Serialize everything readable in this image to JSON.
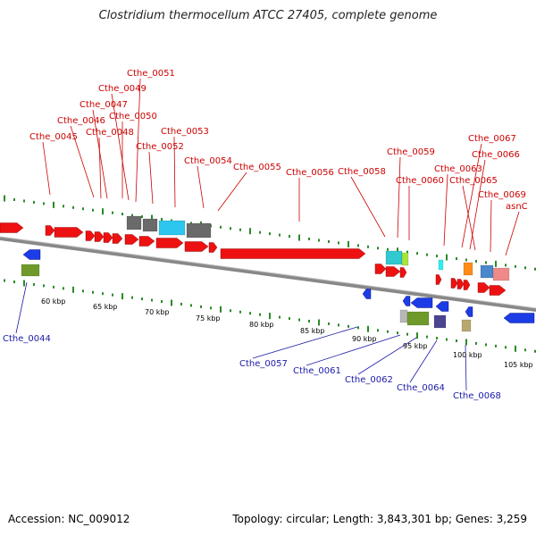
{
  "title": "Clostridium thermocellum ATCC 27405, complete genome",
  "accession": "Accession: NC_009012",
  "topology": "Topology: circular; Length: 3,843,301 bp; Genes: 3,259",
  "colors": {
    "forward_label": "#cc0000",
    "reverse_label": "#1a1aa8",
    "backbone": "#888888",
    "tick": "#2a8a2a"
  },
  "top_labels": [
    "Cthe_0051",
    "Cthe_0049",
    "Cthe_0047",
    "Cthe_0046",
    "Cthe_0050",
    "Cthe_0045",
    "Cthe_0048",
    "Cthe_0053",
    "Cthe_0052",
    "Cthe_0054",
    "Cthe_0055",
    "Cthe_0056",
    "Cthe_0058",
    "Cthe_0059",
    "Cthe_0060",
    "Cthe_0067",
    "Cthe_0066",
    "Cthe_0063",
    "Cthe_0065",
    "Cthe_0069",
    "asnC"
  ],
  "bottom_labels": [
    "Cthe_0044",
    "Cthe_0057",
    "Cthe_0061",
    "Cthe_0062",
    "Cthe_0064",
    "Cthe_0068"
  ],
  "scale_labels": [
    "60 kbp",
    "65 kbp",
    "70 kbp",
    "75 kbp",
    "80 kbp",
    "85 kbp",
    "90 kbp",
    "95 kbp",
    "100 kbp",
    "105 kbp"
  ]
}
